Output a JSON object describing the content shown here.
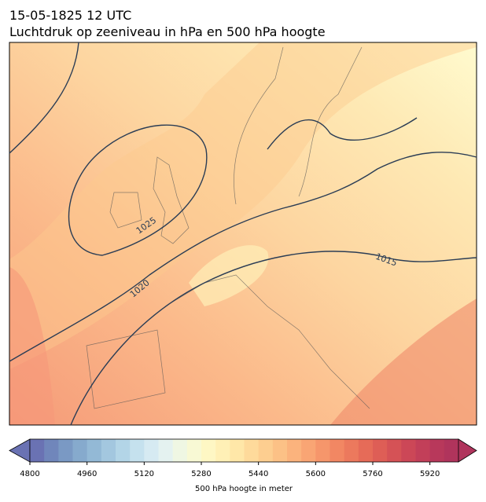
{
  "header": {
    "title": "15-05-1825 12 UTC",
    "subtitle": "Luchtdruk op zeeniveau in hPa en 500 hPa hoogte"
  },
  "map": {
    "contour_labels": [
      "1025",
      "1020",
      "1015"
    ]
  },
  "colorbar": {
    "label": "500 hPa hoogte in meter",
    "lim": [
      4800,
      6000
    ],
    "ticks": [
      4800,
      4960,
      5120,
      5280,
      5440,
      5600,
      5760,
      5920
    ],
    "colors": [
      "#6a72b3",
      "#7086bb",
      "#7a99c4",
      "#86aacd",
      "#93b9d6",
      "#a3c7df",
      "#b3d5e7",
      "#c5e1ee",
      "#d6eaf2",
      "#e4f2f0",
      "#eff7e3",
      "#f8f9d4",
      "#fef7c4",
      "#fff0b6",
      "#ffe7a8",
      "#feda9b",
      "#fdce90",
      "#fcc186",
      "#fbb37d",
      "#f9a574",
      "#f6966b",
      "#f28763",
      "#ec795d",
      "#e66b58",
      "#de5e56",
      "#d55256",
      "#cc4757",
      "#c23f59",
      "#b8385b",
      "#b0345c"
    ]
  }
}
